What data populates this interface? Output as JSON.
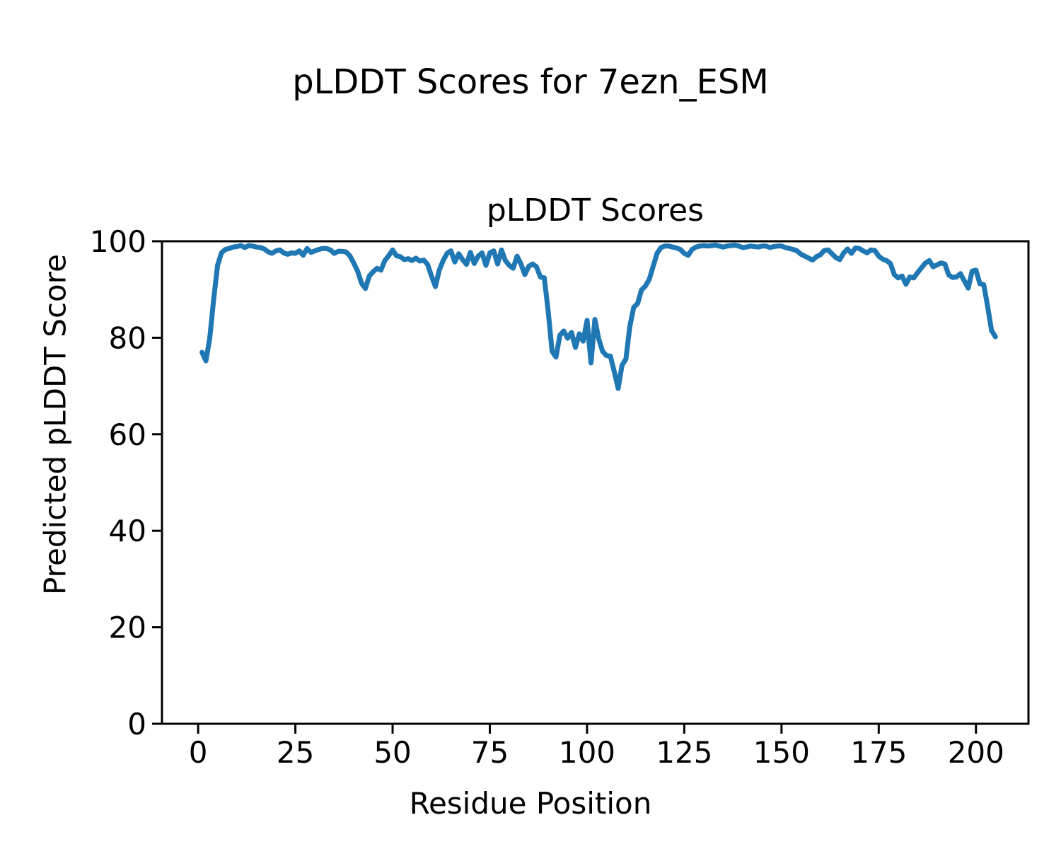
{
  "figure": {
    "suptitle": "pLDDT Scores for 7ezn_ESM"
  },
  "chart_data": {
    "type": "line",
    "title": "pLDDT Scores",
    "suptitle": "pLDDT Scores for 7ezn_ESM",
    "xlabel": "Residue Position",
    "ylabel": "Predicted pLDDT Score",
    "series_name": "pLDDT",
    "line_color": "#1f77b4",
    "axis_color": "#000000",
    "grid": false,
    "legend": "none",
    "xlim": [
      -9.3,
      213.5
    ],
    "ylim": [
      0,
      100
    ],
    "xticks": [
      0,
      25,
      50,
      75,
      100,
      125,
      150,
      175,
      200
    ],
    "yticks": [
      0,
      20,
      40,
      60,
      80,
      100
    ],
    "x_start": 1,
    "x_step": 1,
    "values": [
      77.0,
      75.2,
      80.0,
      88.0,
      95.0,
      97.6,
      98.3,
      98.5,
      98.8,
      98.9,
      99.1,
      98.7,
      99.1,
      99.0,
      98.8,
      98.7,
      98.4,
      97.8,
      97.5,
      98.0,
      98.2,
      97.6,
      97.3,
      97.6,
      97.5,
      98.0,
      97.1,
      98.5,
      97.7,
      98.0,
      98.3,
      98.5,
      98.5,
      98.2,
      97.5,
      97.9,
      97.9,
      97.8,
      97.0,
      95.5,
      93.8,
      91.3,
      90.2,
      92.8,
      93.7,
      94.4,
      94.0,
      96.0,
      97.0,
      98.2,
      97.0,
      96.8,
      96.2,
      96.4,
      96.0,
      96.5,
      95.9,
      96.1,
      95.2,
      92.8,
      90.6,
      94.0,
      96.0,
      97.5,
      98.0,
      95.7,
      97.4,
      96.2,
      95.2,
      97.7,
      95.4,
      96.9,
      97.6,
      95.0,
      97.6,
      98.0,
      95.3,
      98.2,
      96.0,
      95.0,
      94.4,
      96.9,
      95.3,
      93.1,
      94.8,
      95.3,
      94.7,
      92.6,
      92.4,
      85.5,
      77.2,
      76.0,
      80.5,
      81.4,
      79.9,
      81.1,
      78.0,
      80.8,
      79.3,
      83.6,
      74.8,
      83.8,
      79.8,
      77.2,
      76.3,
      76.2,
      73.0,
      69.5,
      74.3,
      75.6,
      82.3,
      86.3,
      87.1,
      89.9,
      90.7,
      92.1,
      94.8,
      97.5,
      98.7,
      99.0,
      99.0,
      98.8,
      98.6,
      98.3,
      97.5,
      97.1,
      98.3,
      98.8,
      99.0,
      99.1,
      99.0,
      99.1,
      99.2,
      99.0,
      98.8,
      99.0,
      99.1,
      99.2,
      99.0,
      98.7,
      98.8,
      99.0,
      98.9,
      98.8,
      99.0,
      99.0,
      98.7,
      98.9,
      99.0,
      99.0,
      98.7,
      98.5,
      98.3,
      98.0,
      97.3,
      96.9,
      96.5,
      96.1,
      96.8,
      97.2,
      98.1,
      98.2,
      97.4,
      96.6,
      96.2,
      97.6,
      98.4,
      97.5,
      98.6,
      98.5,
      98.0,
      97.6,
      98.2,
      98.1,
      96.9,
      96.3,
      96.0,
      95.4,
      93.1,
      92.4,
      92.8,
      91.1,
      92.6,
      92.4,
      93.5,
      94.5,
      95.5,
      96.0,
      94.7,
      95.1,
      95.5,
      95.3,
      93.0,
      92.5,
      92.6,
      93.3,
      91.8,
      90.3,
      93.8,
      94.0,
      91.2,
      91.0,
      86.5,
      81.5,
      80.2
    ]
  }
}
